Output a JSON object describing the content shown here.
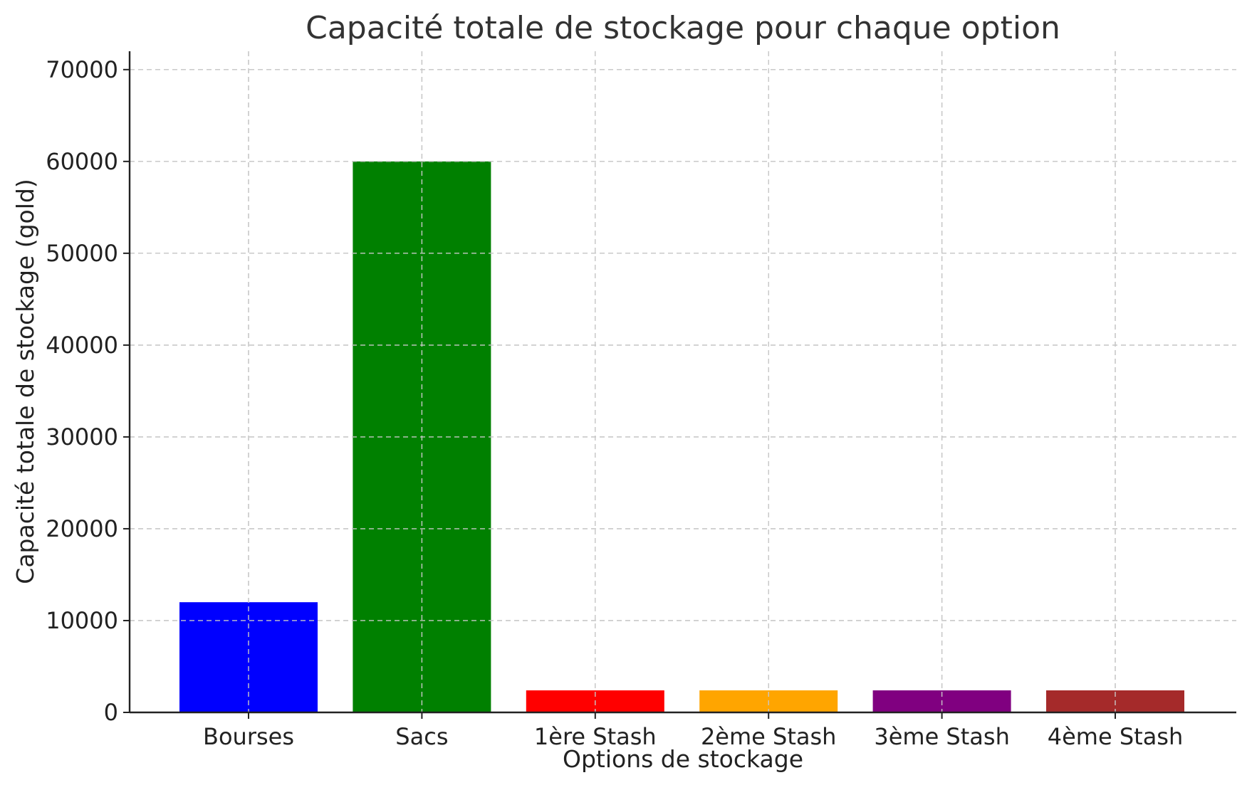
{
  "chart_data": {
    "type": "bar",
    "title": "Capacité totale de stockage pour chaque option",
    "xlabel": "Options de stockage",
    "ylabel": "Capacité totale de stockage (gold)",
    "categories": [
      "Bourses",
      "Sacs",
      "1ère Stash",
      "2ème Stash",
      "3ème Stash",
      "4ème Stash"
    ],
    "values": [
      12000,
      60000,
      2400,
      2400,
      2400,
      2400
    ],
    "colors": [
      "#0000ff",
      "#008000",
      "#ff0000",
      "#ffa500",
      "#800080",
      "#a52a2a"
    ],
    "ylim": [
      0,
      72000
    ],
    "yticks": [
      0,
      10000,
      20000,
      30000,
      40000,
      50000,
      60000,
      70000
    ],
    "grid": true,
    "legend": false
  }
}
